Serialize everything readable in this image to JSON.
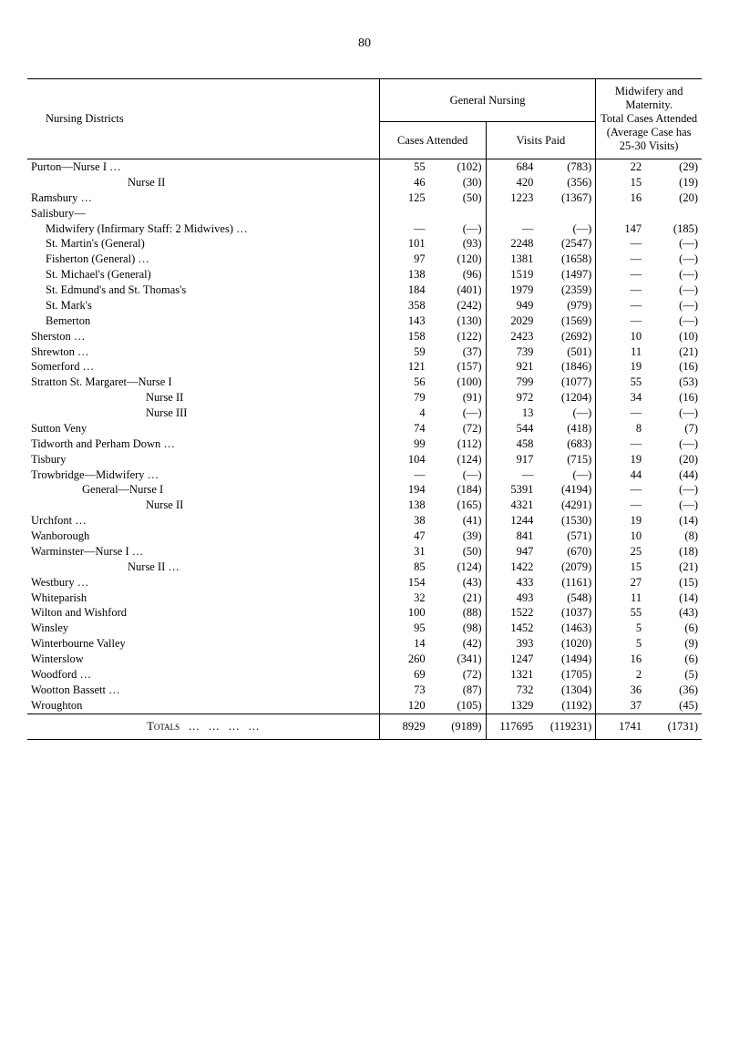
{
  "page_number": "80",
  "headers": {
    "districts": "Nursing Districts",
    "general_nursing": "General Nursing",
    "midwifery": "Midwifery and Maternity.\nTotal Cases Attended\n(Average Case has\n25-30 Visits)",
    "cases_attended": "Cases Attended",
    "visits_paid": "Visits Paid"
  },
  "rows": [
    {
      "name": "Purton—Nurse I …",
      "ind": 0,
      "c": "55",
      "cp": "(102)",
      "v": "684",
      "vp": "(783)",
      "m": "22",
      "mp": "(29)"
    },
    {
      "name": "Nurse II",
      "ind": 3,
      "c": "46",
      "cp": "(30)",
      "v": "420",
      "vp": "(356)",
      "m": "15",
      "mp": "(19)"
    },
    {
      "name": "Ramsbury …",
      "ind": 0,
      "c": "125",
      "cp": "(50)",
      "v": "1223",
      "vp": "(1367)",
      "m": "16",
      "mp": "(20)"
    },
    {
      "name": "Salisbury—",
      "ind": 0,
      "c": "",
      "cp": "",
      "v": "",
      "vp": "",
      "m": "",
      "mp": ""
    },
    {
      "name": "Midwifery (Infirmary Staff: 2 Midwives) …",
      "ind": 1,
      "c": "—",
      "cp": "(—)",
      "v": "—",
      "vp": "(—)",
      "m": "147",
      "mp": "(185)"
    },
    {
      "name": "St. Martin's (General)",
      "ind": 1,
      "c": "101",
      "cp": "(93)",
      "v": "2248",
      "vp": "(2547)",
      "m": "—",
      "mp": "(—)"
    },
    {
      "name": "Fisherton (General) …",
      "ind": 1,
      "c": "97",
      "cp": "(120)",
      "v": "1381",
      "vp": "(1658)",
      "m": "—",
      "mp": "(—)"
    },
    {
      "name": "St. Michael's (General)",
      "ind": 1,
      "c": "138",
      "cp": "(96)",
      "v": "1519",
      "vp": "(1497)",
      "m": "—",
      "mp": "(—)"
    },
    {
      "name": "St. Edmund's and St. Thomas's",
      "ind": 1,
      "c": "184",
      "cp": "(401)",
      "v": "1979",
      "vp": "(2359)",
      "m": "—",
      "mp": "(—)"
    },
    {
      "name": "St. Mark's",
      "ind": 1,
      "c": "358",
      "cp": "(242)",
      "v": "949",
      "vp": "(979)",
      "m": "—",
      "mp": "(—)"
    },
    {
      "name": "Bemerton",
      "ind": 1,
      "c": "143",
      "cp": "(130)",
      "v": "2029",
      "vp": "(1569)",
      "m": "—",
      "mp": "(—)"
    },
    {
      "name": "Sherston …",
      "ind": 0,
      "c": "158",
      "cp": "(122)",
      "v": "2423",
      "vp": "(2692)",
      "m": "10",
      "mp": "(10)"
    },
    {
      "name": "Shrewton …",
      "ind": 0,
      "c": "59",
      "cp": "(37)",
      "v": "739",
      "vp": "(501)",
      "m": "11",
      "mp": "(21)"
    },
    {
      "name": "Somerford …",
      "ind": 0,
      "c": "121",
      "cp": "(157)",
      "v": "921",
      "vp": "(1846)",
      "m": "19",
      "mp": "(16)"
    },
    {
      "name": "Stratton St. Margaret—Nurse I",
      "ind": 0,
      "c": "56",
      "cp": "(100)",
      "v": "799",
      "vp": "(1077)",
      "m": "55",
      "mp": "(53)"
    },
    {
      "name": "Nurse II",
      "ind": 5,
      "c": "79",
      "cp": "(91)",
      "v": "972",
      "vp": "(1204)",
      "m": "34",
      "mp": "(16)"
    },
    {
      "name": "Nurse III",
      "ind": 5,
      "c": "4",
      "cp": "(—)",
      "v": "13",
      "vp": "(—)",
      "m": "—",
      "mp": "(—)"
    },
    {
      "name": "Sutton Veny",
      "ind": 0,
      "c": "74",
      "cp": "(72)",
      "v": "544",
      "vp": "(418)",
      "m": "8",
      "mp": "(7)"
    },
    {
      "name": "Tidworth and Perham Down …",
      "ind": 0,
      "c": "99",
      "cp": "(112)",
      "v": "458",
      "vp": "(683)",
      "m": "—",
      "mp": "(—)"
    },
    {
      "name": "Tisbury",
      "ind": 0,
      "c": "104",
      "cp": "(124)",
      "v": "917",
      "vp": "(715)",
      "m": "19",
      "mp": "(20)"
    },
    {
      "name": "Trowbridge—Midwifery …",
      "ind": 0,
      "c": "—",
      "cp": "(—)",
      "v": "—",
      "vp": "(—)",
      "m": "44",
      "mp": "(44)"
    },
    {
      "name": "General—Nurse I",
      "ind": 4,
      "c": "194",
      "cp": "(184)",
      "v": "5391",
      "vp": "(4194)",
      "m": "—",
      "mp": "(—)"
    },
    {
      "name": "Nurse II",
      "ind": 5,
      "c": "138",
      "cp": "(165)",
      "v": "4321",
      "vp": "(4291)",
      "m": "—",
      "mp": "(—)"
    },
    {
      "name": "Urchfont …",
      "ind": 0,
      "c": "38",
      "cp": "(41)",
      "v": "1244",
      "vp": "(1530)",
      "m": "19",
      "mp": "(14)"
    },
    {
      "name": "Wanborough",
      "ind": 0,
      "c": "47",
      "cp": "(39)",
      "v": "841",
      "vp": "(571)",
      "m": "10",
      "mp": "(8)"
    },
    {
      "name": "Warminster—Nurse I …",
      "ind": 0,
      "c": "31",
      "cp": "(50)",
      "v": "947",
      "vp": "(670)",
      "m": "25",
      "mp": "(18)"
    },
    {
      "name": "Nurse II …",
      "ind": 3,
      "c": "85",
      "cp": "(124)",
      "v": "1422",
      "vp": "(2079)",
      "m": "15",
      "mp": "(21)"
    },
    {
      "name": "Westbury …",
      "ind": 0,
      "c": "154",
      "cp": "(43)",
      "v": "433",
      "vp": "(1161)",
      "m": "27",
      "mp": "(15)"
    },
    {
      "name": "Whiteparish",
      "ind": 0,
      "c": "32",
      "cp": "(21)",
      "v": "493",
      "vp": "(548)",
      "m": "11",
      "mp": "(14)"
    },
    {
      "name": "Wilton and Wishford",
      "ind": 0,
      "c": "100",
      "cp": "(88)",
      "v": "1522",
      "vp": "(1037)",
      "m": "55",
      "mp": "(43)"
    },
    {
      "name": "Winsley",
      "ind": 0,
      "c": "95",
      "cp": "(98)",
      "v": "1452",
      "vp": "(1463)",
      "m": "5",
      "mp": "(6)"
    },
    {
      "name": "Winterbourne Valley",
      "ind": 0,
      "c": "14",
      "cp": "(42)",
      "v": "393",
      "vp": "(1020)",
      "m": "5",
      "mp": "(9)"
    },
    {
      "name": "Winterslow",
      "ind": 0,
      "c": "260",
      "cp": "(341)",
      "v": "1247",
      "vp": "(1494)",
      "m": "16",
      "mp": "(6)"
    },
    {
      "name": "Woodford …",
      "ind": 0,
      "c": "69",
      "cp": "(72)",
      "v": "1321",
      "vp": "(1705)",
      "m": "2",
      "mp": "(5)"
    },
    {
      "name": "Wootton Bassett …",
      "ind": 0,
      "c": "73",
      "cp": "(87)",
      "v": "732",
      "vp": "(1304)",
      "m": "36",
      "mp": "(36)"
    },
    {
      "name": "Wroughton",
      "ind": 0,
      "c": "120",
      "cp": "(105)",
      "v": "1329",
      "vp": "(1192)",
      "m": "37",
      "mp": "(45)"
    }
  ],
  "totals": {
    "label": "Totals",
    "c": "8929",
    "cp": "(9189)",
    "v": "117695",
    "vp": "(119231)",
    "m": "1741",
    "mp": "(1731)"
  }
}
